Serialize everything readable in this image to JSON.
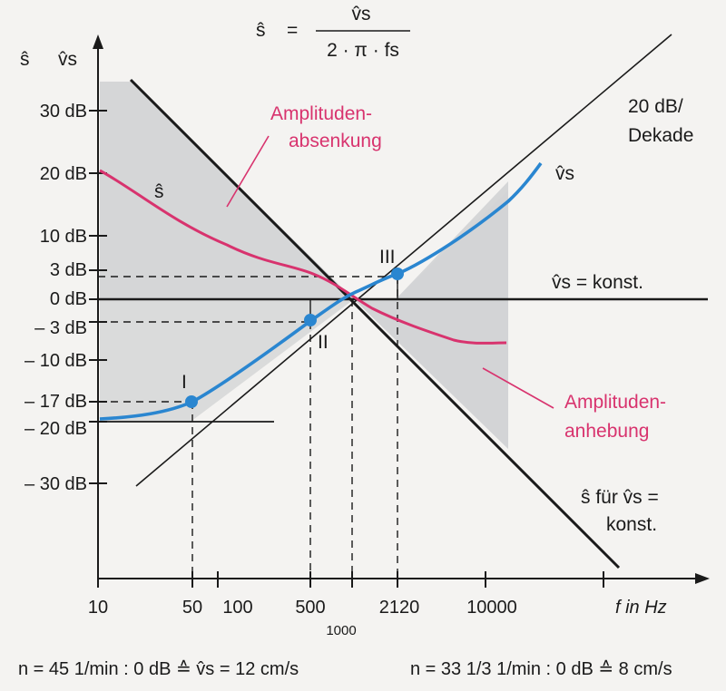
{
  "formula": {
    "lhs": "ŝ",
    "eq": "=",
    "numerator": "v̂s",
    "denominator": "2 · π · fs"
  },
  "y_axis": {
    "symbols": [
      "ŝ",
      "v̂s"
    ],
    "ticks": [
      {
        "label": "30 dB",
        "db": 30
      },
      {
        "label": "20 dB",
        "db": 20
      },
      {
        "label": "10 dB",
        "db": 10
      },
      {
        "label": "3 dB",
        "db": 3
      },
      {
        "label": "0 dB",
        "db": 0
      },
      {
        "label": "– 3 dB",
        "db": -3
      },
      {
        "label": "– 10 dB",
        "db": -10
      },
      {
        "label": "– 17 dB",
        "db": -17
      },
      {
        "label": "– 20 dB",
        "db": -20
      },
      {
        "label": "– 30 dB",
        "db": -30
      }
    ]
  },
  "x_axis": {
    "title": "f in Hz",
    "ticks": [
      "10",
      "50",
      "100",
      "500",
      "1000",
      "2120",
      "10000"
    ]
  },
  "points": [
    {
      "label": "I",
      "freq": 50,
      "db": -17
    },
    {
      "label": "II",
      "freq": 500,
      "db": -3
    },
    {
      "label": "III",
      "freq": 2120,
      "db": 3
    }
  ],
  "annotations": {
    "slope": [
      "20 dB/",
      "Dekade"
    ],
    "vs_curve": "v̂s",
    "s_curve": "ŝ",
    "vs_const": "v̂s = konst.",
    "absenkung": [
      "Amplituden-",
      "absenkung"
    ],
    "anhebung": [
      "Amplituden-",
      "anhebung"
    ],
    "s_fuer": [
      "ŝ für v̂s =",
      "konst."
    ]
  },
  "footnotes": {
    "left": "n = 45 1/min : 0 dB ≙ v̂s = 12 cm/s",
    "right": "n = 33 1/3 1/min : 0 dB ≙ 8 cm/s"
  },
  "colors": {
    "blue": "#2a86d0",
    "pink": "#d8336e",
    "gray": "#cfd0d2",
    "black": "#1a1a1a"
  }
}
